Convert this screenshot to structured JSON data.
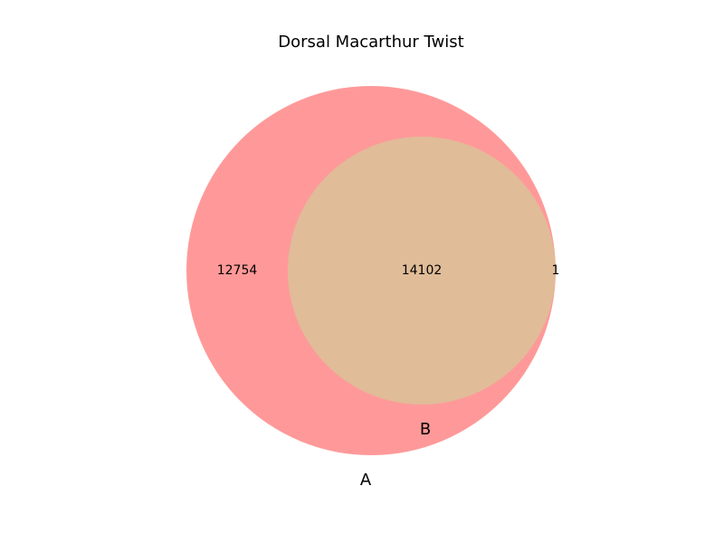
{
  "title": "Dorsal Macarthur Twist",
  "sets": [
    {
      "name": "A",
      "color": "#ff9999"
    },
    {
      "name": "B",
      "color": "#e0bc98"
    }
  ],
  "regions": {
    "a_only": "12754",
    "a_and_b": "14102",
    "b_only": "1"
  }
}
